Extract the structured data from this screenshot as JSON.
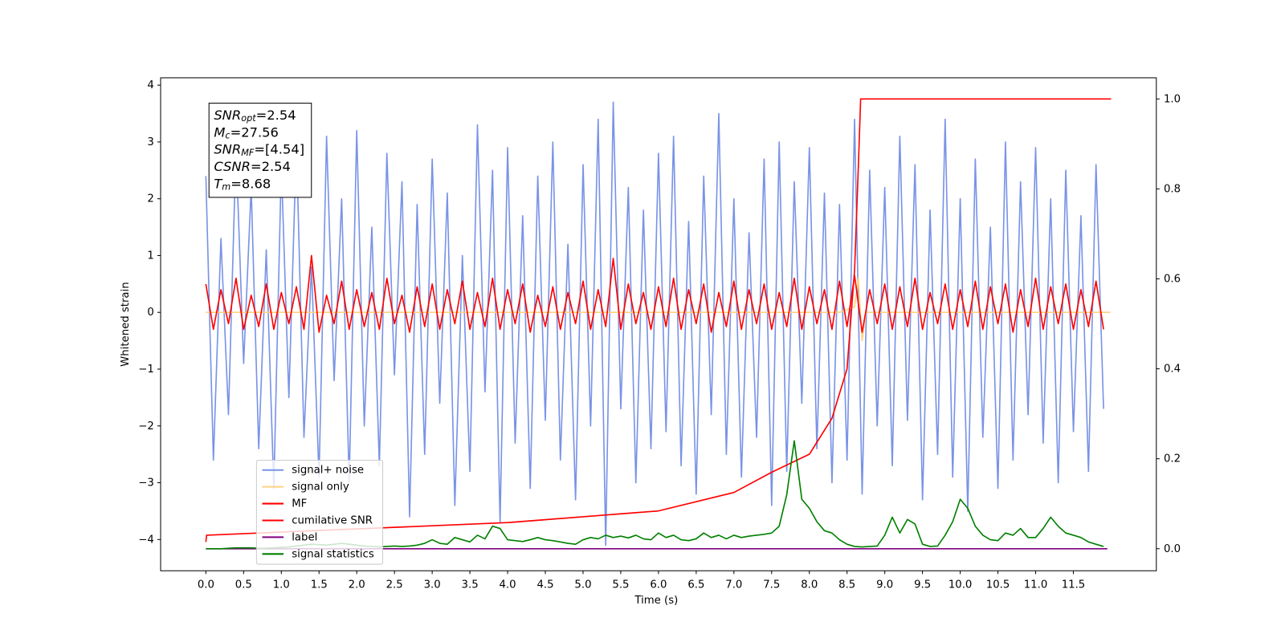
{
  "chart_data": {
    "type": "line",
    "xlabel": "Time (s)",
    "ylabel": "Whitened strain",
    "xlim": [
      -0.6,
      12.6
    ],
    "ylim": [
      -4.55,
      4.13
    ],
    "y2lim": [
      -0.049,
      1.047
    ],
    "xticks": [
      {
        "value": 0,
        "label": "0.0"
      },
      0.5,
      {
        "value": 1,
        "label": "1.0"
      },
      1.5,
      {
        "value": 2,
        "label": "2.0"
      },
      2.5,
      {
        "value": 3,
        "label": "3.0"
      },
      3.5,
      {
        "value": 4,
        "label": "4.0"
      },
      4.5,
      {
        "value": 5,
        "label": "5.0"
      },
      5.5,
      {
        "value": 6,
        "label": "6.0"
      },
      6.5,
      {
        "value": 7,
        "label": "7.0"
      },
      7.5,
      {
        "value": 8,
        "label": "8.0"
      },
      8.5,
      {
        "value": 9,
        "label": "9.0"
      },
      9.5,
      {
        "value": 10,
        "label": "10.0"
      },
      10.5,
      {
        "value": 11,
        "label": "11.0"
      },
      11.5
    ],
    "yticks": [
      {
        "value": -4,
        "label": "−4"
      },
      {
        "value": -3,
        "label": "−3"
      },
      {
        "value": -2,
        "label": "−2"
      },
      {
        "value": -1,
        "label": "−1"
      },
      0,
      1,
      2,
      3,
      4
    ],
    "y2ticks": [
      {
        "value": 0,
        "label": "0.0"
      },
      0.2,
      0.4,
      0.6,
      0.8,
      {
        "value": 1,
        "label": "1.0"
      }
    ],
    "legend": "lower left",
    "annotations": [
      {
        "main": "SNR",
        "sub": "opt",
        "text": "=2.54"
      },
      {
        "main": "M",
        "sub": "c",
        "text": "=27.56"
      },
      {
        "main": "SNR",
        "sub": "MF",
        "text": "=[4.54]"
      },
      {
        "main": "CSNR",
        "sub": "",
        "text": "=2.54"
      },
      {
        "main": "T",
        "sub": "m",
        "text": "=8.68"
      }
    ],
    "x": [
      0,
      0.1,
      0.2,
      0.3,
      0.4,
      0.5,
      0.6,
      0.7,
      0.8,
      0.9,
      1,
      1.1,
      1.2,
      1.3,
      1.4,
      1.5,
      1.6,
      1.7,
      1.8,
      1.9,
      2,
      2.1,
      2.2,
      2.3,
      2.4,
      2.5,
      2.6,
      2.7,
      2.8,
      2.9,
      3,
      3.1,
      3.2,
      3.3,
      3.4,
      3.5,
      3.6,
      3.7,
      3.8,
      3.9,
      4,
      4.1,
      4.2,
      4.3,
      4.4,
      4.5,
      4.6,
      4.7,
      4.8,
      4.9,
      5,
      5.1,
      5.2,
      5.3,
      5.4,
      5.5,
      5.6,
      5.7,
      5.8,
      5.9,
      6,
      6.1,
      6.2,
      6.3,
      6.4,
      6.5,
      6.6,
      6.7,
      6.8,
      6.9,
      7,
      7.1,
      7.2,
      7.3,
      7.4,
      7.5,
      7.6,
      7.7,
      7.8,
      7.9,
      8,
      8.1,
      8.2,
      8.3,
      8.4,
      8.5,
      8.6,
      8.7,
      8.8,
      8.9,
      9,
      9.1,
      9.2,
      9.3,
      9.4,
      9.5,
      9.6,
      9.7,
      9.8,
      9.9,
      10,
      10.1,
      10.2,
      10.3,
      10.4,
      10.5,
      10.6,
      10.7,
      10.8,
      10.9,
      11,
      11.1,
      11.2,
      11.3,
      11.4,
      11.5,
      11.6,
      11.7,
      11.8,
      11.9
    ],
    "series": [
      {
        "name": "signal+ noise",
        "color": "#7993e6",
        "axis": "y",
        "values": [
          2.4,
          -2.6,
          1.3,
          -1.8,
          2.9,
          -0.9,
          2.2,
          -2.4,
          1.1,
          -3.1,
          2.6,
          -1.5,
          3.0,
          -2.2,
          0.8,
          -2.9,
          3.1,
          -1.2,
          2.0,
          -3.0,
          3.2,
          -2.0,
          1.5,
          -2.7,
          2.8,
          -1.1,
          2.3,
          -3.6,
          1.9,
          -2.5,
          2.7,
          -1.6,
          2.1,
          -3.4,
          1.0,
          -2.8,
          3.3,
          -1.4,
          2.5,
          -3.7,
          2.9,
          -2.3,
          1.7,
          -3.1,
          2.4,
          -1.9,
          3.0,
          -2.6,
          1.2,
          -3.3,
          2.6,
          -2.0,
          3.4,
          -4.1,
          3.7,
          -1.7,
          2.2,
          -3.0,
          1.8,
          -2.4,
          2.8,
          -2.1,
          3.1,
          -2.7,
          1.6,
          -3.2,
          2.4,
          -1.8,
          3.5,
          -2.5,
          2.0,
          -2.9,
          1.4,
          -2.2,
          2.7,
          -3.4,
          3.0,
          -2.8,
          2.3,
          -1.6,
          2.9,
          -2.4,
          2.1,
          -3.0,
          1.9,
          -2.6,
          3.4,
          -3.2,
          2.5,
          -2.0,
          2.2,
          -2.7,
          3.1,
          -1.9,
          2.6,
          -3.3,
          1.8,
          -2.5,
          3.4,
          -2.9,
          2.0,
          -3.5,
          2.7,
          -2.2,
          1.5,
          -3.1,
          3.0,
          -2.6,
          2.3,
          -1.8,
          2.9,
          -2.3,
          2.0,
          -3.0,
          2.5,
          -2.1,
          1.7,
          -2.8,
          2.6,
          -1.7
        ]
      },
      {
        "name": "signal only",
        "color": "#ffd27f",
        "axis": "y",
        "x": [
          0,
          8.4,
          8.6,
          8.65,
          8.7,
          8.75,
          11.99
        ],
        "values": [
          0,
          0,
          0.1,
          0.6,
          -0.5,
          0,
          0
        ]
      },
      {
        "name": "MF",
        "color": "#ff0000",
        "axis": "y",
        "values": [
          0.5,
          -0.3,
          0.4,
          -0.2,
          0.6,
          -0.3,
          0.3,
          -0.25,
          0.5,
          -0.3,
          0.35,
          -0.2,
          0.45,
          -0.3,
          1.0,
          -0.35,
          0.3,
          -0.2,
          0.55,
          -0.3,
          0.4,
          -0.25,
          0.35,
          -0.3,
          0.6,
          -0.2,
          0.3,
          -0.35,
          0.45,
          -0.25,
          0.5,
          -0.3,
          0.4,
          -0.2,
          0.55,
          -0.3,
          0.35,
          -0.25,
          0.6,
          -0.3,
          0.4,
          -0.2,
          0.5,
          -0.35,
          0.3,
          -0.25,
          0.45,
          -0.3,
          0.35,
          -0.2,
          0.55,
          -0.3,
          0.4,
          -0.25,
          0.95,
          -0.3,
          0.5,
          -0.2,
          0.35,
          -0.3,
          0.45,
          -0.25,
          0.6,
          -0.3,
          0.4,
          -0.2,
          0.5,
          -0.35,
          0.35,
          -0.25,
          0.55,
          -0.3,
          0.4,
          -0.2,
          0.5,
          -0.3,
          0.35,
          -0.25,
          0.6,
          -0.3,
          0.45,
          -0.2,
          0.4,
          -0.3,
          0.55,
          -0.25,
          0.65,
          -0.35,
          0.4,
          -0.2,
          0.5,
          -0.3,
          0.45,
          -0.25,
          0.6,
          -0.3,
          0.35,
          -0.2,
          0.5,
          -0.3,
          0.4,
          -0.25,
          0.55,
          -0.3,
          0.45,
          -0.2,
          0.5,
          -0.35,
          0.4,
          -0.25,
          0.6,
          -0.3,
          0.45,
          -0.2,
          0.5,
          -0.3,
          0.4,
          -0.25,
          0.55,
          -0.3
        ]
      },
      {
        "name": "cumilative SNR",
        "color": "#ff0000",
        "axis": "y2",
        "x": [
          0,
          0.01,
          2,
          4,
          6,
          7,
          7.5,
          8,
          8.3,
          8.5,
          8.6,
          8.65,
          8.68,
          12.0
        ],
        "values": [
          0.015,
          0.03,
          0.044,
          0.058,
          0.084,
          0.125,
          0.17,
          0.21,
          0.29,
          0.4,
          0.62,
          0.85,
          1.0,
          1.0
        ]
      },
      {
        "name": "label",
        "color": "#800080",
        "axis": "y2",
        "x": [
          0,
          11.95
        ],
        "values": [
          0,
          0
        ]
      },
      {
        "name": "signal statistics",
        "color": "#008000",
        "axis": "y2",
        "values": [
          0,
          0,
          0,
          0.001,
          0.002,
          0.002,
          0.002,
          0.001,
          0.001,
          0.002,
          0.003,
          0.004,
          0.006,
          0.008,
          0.01,
          0.009,
          0.008,
          0.01,
          0.012,
          0.01,
          0.008,
          0.006,
          0.005,
          0.004,
          0.005,
          0.006,
          0.005,
          0.006,
          0.008,
          0.012,
          0.02,
          0.012,
          0.01,
          0.025,
          0.02,
          0.015,
          0.03,
          0.022,
          0.05,
          0.045,
          0.02,
          0.018,
          0.016,
          0.02,
          0.025,
          0.02,
          0.018,
          0.015,
          0.012,
          0.01,
          0.02,
          0.025,
          0.022,
          0.03,
          0.025,
          0.028,
          0.024,
          0.03,
          0.022,
          0.02,
          0.035,
          0.025,
          0.03,
          0.02,
          0.018,
          0.022,
          0.035,
          0.025,
          0.03,
          0.022,
          0.03,
          0.025,
          0.028,
          0.03,
          0.032,
          0.035,
          0.05,
          0.12,
          0.24,
          0.11,
          0.09,
          0.06,
          0.04,
          0.035,
          0.02,
          0.01,
          0.005,
          0.004,
          0.005,
          0.006,
          0.03,
          0.07,
          0.035,
          0.065,
          0.055,
          0.01,
          0.005,
          0.006,
          0.03,
          0.06,
          0.11,
          0.09,
          0.05,
          0.03,
          0.02,
          0.018,
          0.035,
          0.03,
          0.045,
          0.025,
          0.025,
          0.045,
          0.07,
          0.05,
          0.035,
          0.03,
          0.025,
          0.015,
          0.01,
          0.005
        ]
      }
    ]
  }
}
